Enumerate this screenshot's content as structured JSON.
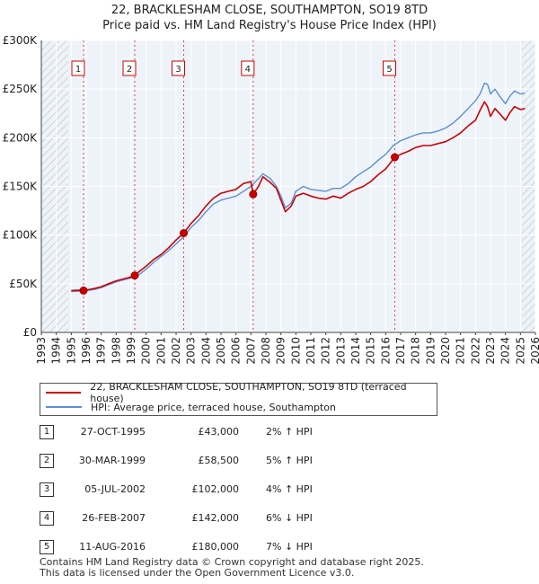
{
  "title_line1": "22, BRACKLESHAM CLOSE, SOUTHAMPTON, SO19 8TD",
  "title_line2": "Price paid vs. HM Land Registry's House Price Index (HPI)",
  "chart_data": {
    "type": "line",
    "title": "22, BRACKLESHAM CLOSE, SOUTHAMPTON, SO19 8TD",
    "subtitle": "Price paid vs. HM Land Registry's House Price Index (HPI)",
    "xlim": [
      1993,
      2026
    ],
    "ylim": [
      0,
      300000
    ],
    "x_ticks": [
      1993,
      1994,
      1995,
      1996,
      1997,
      1998,
      1999,
      2000,
      2001,
      2002,
      2003,
      2004,
      2005,
      2006,
      2007,
      2008,
      2009,
      2010,
      2011,
      2012,
      2013,
      2014,
      2015,
      2016,
      2017,
      2018,
      2019,
      2020,
      2021,
      2022,
      2023,
      2024,
      2025,
      2026
    ],
    "x_tick_labels": [
      "1993",
      "1994",
      "1995",
      "1996",
      "1997",
      "1998",
      "1999",
      "2000",
      "2001",
      "2002",
      "2003",
      "2004",
      "2005",
      "2006",
      "2007",
      "2008",
      "2009",
      "2010",
      "2011",
      "2012",
      "2013",
      "2014",
      "2015",
      "2016",
      "2017",
      "2018",
      "2019",
      "2020",
      "2021",
      "2022",
      "2023",
      "2024",
      "2025",
      "2026"
    ],
    "y_ticks": [
      0,
      50000,
      100000,
      150000,
      200000,
      250000,
      300000
    ],
    "y_tick_labels": [
      "£0",
      "£50K",
      "£100K",
      "£150K",
      "£200K",
      "£250K",
      "£300K"
    ],
    "hatched_ranges": [
      [
        1993,
        1994.8
      ],
      [
        2025.1,
        2026
      ]
    ],
    "grid": true,
    "series": [
      {
        "name": "22, BRACKLESHAM CLOSE, SOUTHAMPTON, SO19 8TD (terraced house)",
        "color": "#cc0000",
        "x": [
          1995.0,
          1995.5,
          1995.82,
          1996.5,
          1997.0,
          1997.5,
          1998.0,
          1998.5,
          1999.0,
          1999.24,
          1999.5,
          2000.0,
          2000.5,
          2001.0,
          2001.5,
          2002.0,
          2002.51,
          2003.0,
          2003.5,
          2004.0,
          2004.5,
          2005.0,
          2005.5,
          2006.0,
          2006.5,
          2007.0,
          2007.15,
          2007.5,
          2007.8,
          2008.3,
          2008.7,
          2009.0,
          2009.3,
          2009.7,
          2010.0,
          2010.5,
          2011.0,
          2011.5,
          2012.0,
          2012.5,
          2013.0,
          2013.5,
          2014.0,
          2014.5,
          2015.0,
          2015.5,
          2016.0,
          2016.61,
          2017.0,
          2017.5,
          2018.0,
          2018.5,
          2019.0,
          2019.5,
          2020.0,
          2020.5,
          2021.0,
          2021.5,
          2022.0,
          2022.3,
          2022.6,
          2022.8,
          2023.0,
          2023.3,
          2023.6,
          2024.0,
          2024.3,
          2024.6,
          2025.0,
          2025.3
        ],
        "values": [
          43000,
          43500,
          43000,
          45000,
          47000,
          50000,
          53000,
          55000,
          57000,
          58500,
          62000,
          68000,
          75000,
          80000,
          87000,
          95000,
          102000,
          112000,
          120000,
          130000,
          138000,
          143000,
          145000,
          147000,
          153000,
          155000,
          142000,
          150000,
          160000,
          154000,
          148000,
          136000,
          124000,
          130000,
          140000,
          143000,
          140000,
          138000,
          137000,
          140000,
          138000,
          143000,
          147000,
          150000,
          155000,
          162000,
          168000,
          180000,
          183000,
          186000,
          190000,
          192000,
          192000,
          194000,
          196000,
          200000,
          205000,
          212000,
          218000,
          228000,
          237000,
          232000,
          222000,
          230000,
          225000,
          218000,
          226000,
          232000,
          229000,
          230000
        ]
      },
      {
        "name": "HPI: Average price, terraced house, Southampton",
        "color": "#5b8fd0",
        "x": [
          1995.0,
          1995.5,
          1996.0,
          1996.5,
          1997.0,
          1997.5,
          1998.0,
          1998.5,
          1999.0,
          1999.5,
          2000.0,
          2000.5,
          2001.0,
          2001.5,
          2002.0,
          2002.5,
          2003.0,
          2003.5,
          2004.0,
          2004.5,
          2005.0,
          2005.5,
          2006.0,
          2006.5,
          2007.0,
          2007.5,
          2007.8,
          2008.3,
          2008.7,
          2009.0,
          2009.3,
          2009.7,
          2010.0,
          2010.5,
          2011.0,
          2011.5,
          2012.0,
          2012.5,
          2013.0,
          2013.5,
          2014.0,
          2014.5,
          2015.0,
          2015.5,
          2016.0,
          2016.5,
          2017.0,
          2017.5,
          2018.0,
          2018.5,
          2019.0,
          2019.5,
          2020.0,
          2020.5,
          2021.0,
          2021.5,
          2022.0,
          2022.3,
          2022.6,
          2022.8,
          2023.0,
          2023.3,
          2023.6,
          2024.0,
          2024.3,
          2024.6,
          2025.0,
          2025.3
        ],
        "values": [
          42000,
          42500,
          43000,
          44000,
          46000,
          49000,
          52000,
          54000,
          56000,
          59000,
          65000,
          72000,
          78000,
          84000,
          91000,
          98000,
          108000,
          115000,
          124000,
          132000,
          136000,
          138000,
          140000,
          145000,
          150000,
          158000,
          163000,
          158000,
          150000,
          140000,
          128000,
          133000,
          145000,
          150000,
          147000,
          146000,
          145000,
          148000,
          148000,
          153000,
          160000,
          165000,
          170000,
          177000,
          183000,
          192000,
          197000,
          200000,
          203000,
          205000,
          205000,
          207000,
          210000,
          215000,
          222000,
          230000,
          238000,
          245000,
          256000,
          255000,
          245000,
          250000,
          243000,
          235000,
          243000,
          248000,
          245000,
          246000
        ]
      }
    ],
    "sales": [
      {
        "id": "1",
        "x": 1995.82,
        "value": 43000
      },
      {
        "id": "2",
        "x": 1999.24,
        "value": 58500
      },
      {
        "id": "3",
        "x": 2002.51,
        "value": 102000
      },
      {
        "id": "4",
        "x": 2007.15,
        "value": 142000
      },
      {
        "id": "5",
        "x": 2016.61,
        "value": 180000
      }
    ]
  },
  "legend": {
    "property_label": "22, BRACKLESHAM CLOSE, SOUTHAMPTON, SO19 8TD (terraced house)",
    "hpi_label": "HPI: Average price, terraced house, Southampton",
    "property_color": "#cc0000",
    "hpi_color": "#5b8fd0"
  },
  "sales_table": [
    {
      "num": "1",
      "date": "27-OCT-1995",
      "price": "£43,000",
      "hpi": "2% ↑ HPI"
    },
    {
      "num": "2",
      "date": "30-MAR-1999",
      "price": "£58,500",
      "hpi": "5% ↑ HPI"
    },
    {
      "num": "3",
      "date": "05-JUL-2002",
      "price": "£102,000",
      "hpi": "4% ↑ HPI"
    },
    {
      "num": "4",
      "date": "26-FEB-2007",
      "price": "£142,000",
      "hpi": "6% ↓ HPI"
    },
    {
      "num": "5",
      "date": "11-AUG-2016",
      "price": "£180,000",
      "hpi": "7% ↓ HPI"
    }
  ],
  "footer": {
    "line1": "Contains HM Land Registry data © Crown copyright and database right 2025.",
    "line2": "This data is licensed under the Open Government Licence v3.0."
  }
}
